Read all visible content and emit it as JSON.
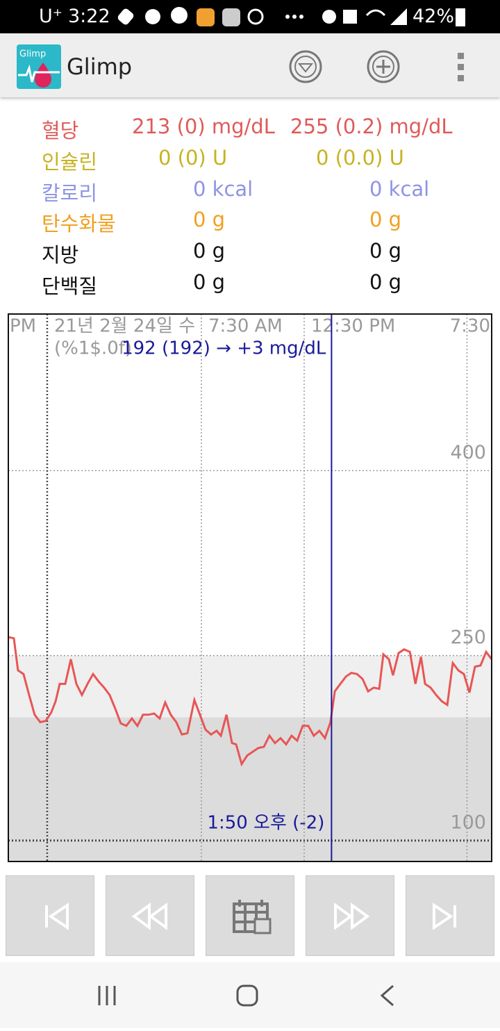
{
  "status_bar": {
    "carrier": "U⁺",
    "time": "3:22",
    "battery": "42%"
  },
  "app_bar": {
    "icon_label": "Glimp",
    "title": "Glimp"
  },
  "summary": [
    {
      "label": "혈당",
      "col1": "213 (0) mg/dL",
      "col2": "255 (0.2) mg/dL",
      "color": "#e05a5a"
    },
    {
      "label": "인슐린",
      "col1": "0 (0) U",
      "col2": "0 (0.0) U",
      "color": "#c6b322"
    },
    {
      "label": "칼로리",
      "col1": "0 kcal",
      "col2": "0 kcal",
      "color": "#8e94e2"
    },
    {
      "label": "탄수화물",
      "col1": "0 g",
      "col2": "0 g",
      "color": "#f0a020"
    },
    {
      "label": "지방",
      "col1": "0 g",
      "col2": "0 g",
      "color": "#111111"
    },
    {
      "label": "단백질",
      "col1": "0 g",
      "col2": "0 g",
      "color": "#111111"
    }
  ],
  "chart_data": {
    "type": "line",
    "color": "#e85555",
    "x_edge_label": "PM",
    "format_label": "(%1$.0f)",
    "x": [
      -1.89,
      -1.62,
      -1.42,
      -1.15,
      -0.88,
      -0.61,
      -0.34,
      -0.07,
      0.2,
      0.41,
      0.61,
      0.88,
      1.15,
      1.42,
      1.69,
      1.96,
      2.23,
      2.5,
      2.77,
      3.04,
      3.31,
      3.58,
      3.85,
      4.12,
      4.39,
      4.66,
      4.93,
      5.2,
      5.47,
      5.74,
      6.01,
      6.28,
      6.55,
      6.82,
      7.16,
      7.43,
      7.7,
      7.97,
      8.24,
      8.45,
      8.72,
      8.99,
      9.19,
      9.46,
      9.73,
      10.0,
      10.27,
      10.54,
      10.81,
      11.08,
      11.35,
      11.62,
      11.89,
      12.16,
      12.43,
      12.7,
      12.97,
      13.24,
      13.51,
      13.78,
      13.99,
      14.26,
      14.53,
      14.8,
      15.07,
      15.34,
      15.61,
      15.88,
      16.15,
      16.35,
      16.62,
      16.82,
      17.09,
      17.36,
      17.64,
      17.91,
      18.18,
      18.38,
      18.65,
      18.92,
      19.19,
      19.46,
      19.73,
      20.0,
      20.27,
      20.54,
      20.81,
      21.08,
      21.35,
      21.62
    ],
    "values": [
      265,
      264,
      238,
      235,
      218,
      202,
      196,
      197,
      204,
      213,
      227,
      227,
      247,
      227,
      218,
      227,
      235,
      229,
      224,
      218,
      207,
      195,
      193,
      199,
      193,
      202,
      202,
      203,
      199,
      212,
      202,
      196,
      186,
      187,
      214,
      202,
      190,
      186,
      189,
      185,
      202,
      179,
      178,
      162,
      169,
      172,
      175,
      176,
      185,
      179,
      183,
      178,
      185,
      181,
      193,
      193,
      185,
      189,
      183,
      196,
      221,
      227,
      233,
      236,
      235,
      231,
      221,
      224,
      223,
      251,
      247,
      234,
      252,
      255,
      253,
      227,
      249,
      227,
      224,
      218,
      213,
      210,
      244,
      238,
      235,
      220,
      241,
      242,
      253,
      247
    ],
    "xlim": [
      -1.89,
      21.62
    ],
    "xticks": [
      {
        "value": 0,
        "label": "21년 2월 24일 수"
      },
      {
        "value": 7.5,
        "label": "7:30 AM"
      },
      {
        "value": 12.5,
        "label": "12:30 PM"
      },
      {
        "value": 20.42,
        "label": "7:30"
      }
    ],
    "ylim": [
      83,
      527
    ],
    "yticks": [
      100,
      250,
      400
    ],
    "grid": true,
    "bands": [
      {
        "from": 200,
        "to": 250,
        "color": "#efefef"
      },
      {
        "from": 83,
        "to": 200,
        "color": "#dcdcdc"
      }
    ],
    "cursor": {
      "x": 13.83,
      "color": "#1a1a9a",
      "value_label": "192 (192) → +3 mg/dL",
      "time_label": "1:50 오후 (-2)"
    }
  }
}
